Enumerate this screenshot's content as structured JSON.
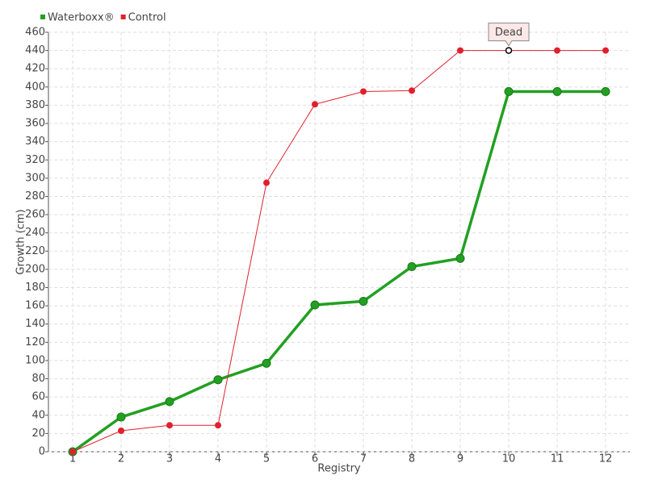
{
  "chart_data": {
    "type": "line",
    "x": [
      1,
      2,
      3,
      4,
      5,
      6,
      7,
      8,
      9,
      10,
      11,
      12
    ],
    "xlim": [
      0.5,
      12.5
    ],
    "xticks": [
      1,
      2,
      3,
      4,
      5,
      6,
      7,
      8,
      9,
      10,
      11,
      12
    ],
    "ylim": [
      0,
      460
    ],
    "yticks": [
      0,
      20,
      40,
      60,
      80,
      100,
      120,
      140,
      160,
      180,
      200,
      220,
      240,
      260,
      280,
      300,
      320,
      340,
      360,
      380,
      400,
      420,
      440,
      460
    ],
    "x_label": "Registry",
    "y_label": "Growth (cm)",
    "grid": true,
    "legend": "top-left",
    "series": [
      {
        "name": "Waterboxx®",
        "color": "#22a022",
        "values": [
          0,
          38,
          55,
          79,
          97,
          161,
          165,
          203,
          212,
          395,
          395,
          395
        ]
      },
      {
        "name": "Control",
        "color": "#e0202e",
        "values": [
          0,
          23,
          29,
          29,
          295,
          381,
          395,
          396,
          440,
          440,
          440,
          440
        ]
      }
    ],
    "annotations": [
      {
        "text": "Dead",
        "x": 10,
        "y": 440
      }
    ]
  }
}
